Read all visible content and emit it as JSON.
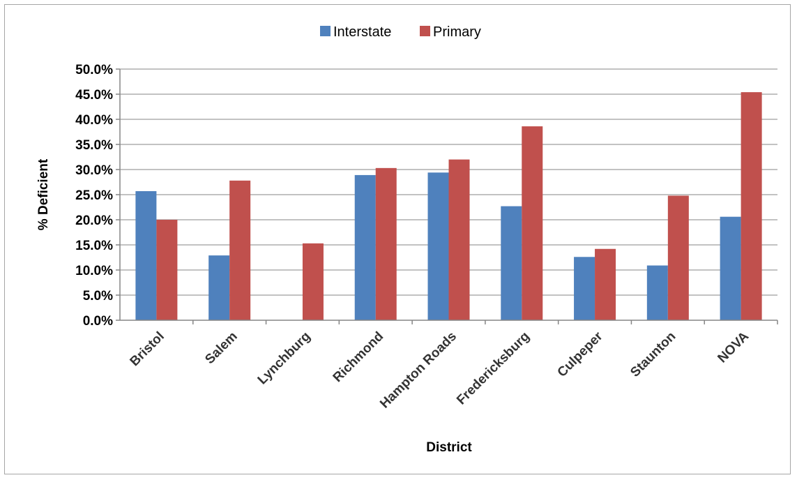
{
  "chart_data": {
    "type": "bar",
    "categories": [
      "Bristol",
      "Salem",
      "Lynchburg",
      "Richmond",
      "Hampton Roads",
      "Fredericksburg",
      "Culpeper",
      "Staunton",
      "NOVA"
    ],
    "series": [
      {
        "name": "Interstate",
        "color": "#4f81bd",
        "values": [
          25.7,
          12.9,
          0.0,
          28.9,
          29.4,
          22.7,
          12.6,
          10.9,
          20.6
        ]
      },
      {
        "name": "Primary",
        "color": "#c0504d",
        "values": [
          20.0,
          27.8,
          15.3,
          30.3,
          32.0,
          38.6,
          14.2,
          24.8,
          45.4
        ]
      }
    ],
    "yticks": [
      "0.0%",
      "5.0%",
      "10.0%",
      "15.0%",
      "20.0%",
      "25.0%",
      "30.0%",
      "35.0%",
      "40.0%",
      "45.0%",
      "50.0%"
    ],
    "ylim": [
      0,
      50
    ],
    "xlabel": "District",
    "ylabel": "% Deficient",
    "legend_position": "top",
    "grid": true
  }
}
